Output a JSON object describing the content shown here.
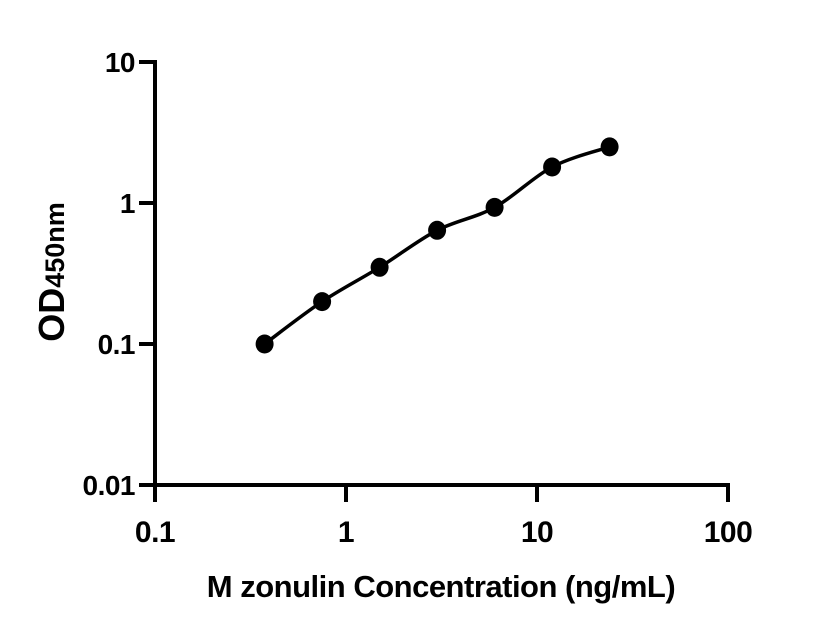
{
  "figure": {
    "background_color": "#ffffff",
    "axis_color": "#000000",
    "marker_color": "#000000",
    "curve_color": "#000000"
  },
  "chart_data": {
    "type": "scatter",
    "subtype": "standard-curve-with-fit-line",
    "xlabel": "M zonulin Concentration (ng/mL)",
    "ylabel": "OD",
    "ylabel_subscript": "450nm",
    "x_scale": "log",
    "y_scale": "log",
    "xlim": [
      0.1,
      100
    ],
    "ylim": [
      0.01,
      10
    ],
    "x_ticks": [
      0.1,
      1,
      10,
      100
    ],
    "x_tick_labels": [
      "0.1",
      "1",
      "10",
      "100"
    ],
    "y_ticks": [
      10,
      1,
      0.1,
      0.01
    ],
    "y_tick_labels": [
      "10",
      "1",
      "0.1",
      "0.01"
    ],
    "grid": false,
    "legend_position": "none",
    "series": [
      {
        "name": "standard-curve",
        "marker": "filled-circle",
        "has_fit_line": true,
        "points": [
          {
            "x": 0.375,
            "y": 0.1
          },
          {
            "x": 0.75,
            "y": 0.2
          },
          {
            "x": 1.5,
            "y": 0.35
          },
          {
            "x": 3,
            "y": 0.64
          },
          {
            "x": 6,
            "y": 0.93
          },
          {
            "x": 12,
            "y": 1.8
          },
          {
            "x": 24,
            "y": 2.5
          }
        ]
      }
    ]
  }
}
